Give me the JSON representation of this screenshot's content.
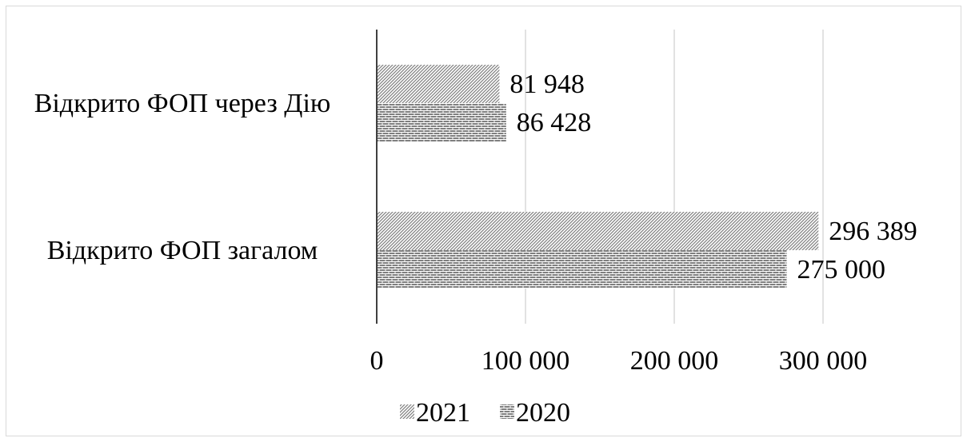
{
  "chart_data": {
    "type": "bar",
    "orientation": "horizontal",
    "categories": [
      "Відкрито ФОП через Дію",
      "Відкрито ФОП загалом"
    ],
    "series": [
      {
        "name": "2021",
        "values": [
          81948,
          296389
        ],
        "value_labels": [
          "81 948",
          "296 389"
        ],
        "pattern": "diagonal-hatch"
      },
      {
        "name": "2020",
        "values": [
          86428,
          275000
        ],
        "value_labels": [
          "86 428",
          "275 000"
        ],
        "pattern": "brick"
      }
    ],
    "xlim": [
      0,
      300000
    ],
    "x_ticks": [
      0,
      100000,
      200000,
      300000
    ],
    "x_tick_labels": [
      "0",
      "100 000",
      "200 000",
      "300 000"
    ],
    "grid": true,
    "legend_position": "bottom",
    "colors": {
      "bar": "#808080",
      "grid": "#d9d9d9",
      "axis": "#000000"
    }
  }
}
